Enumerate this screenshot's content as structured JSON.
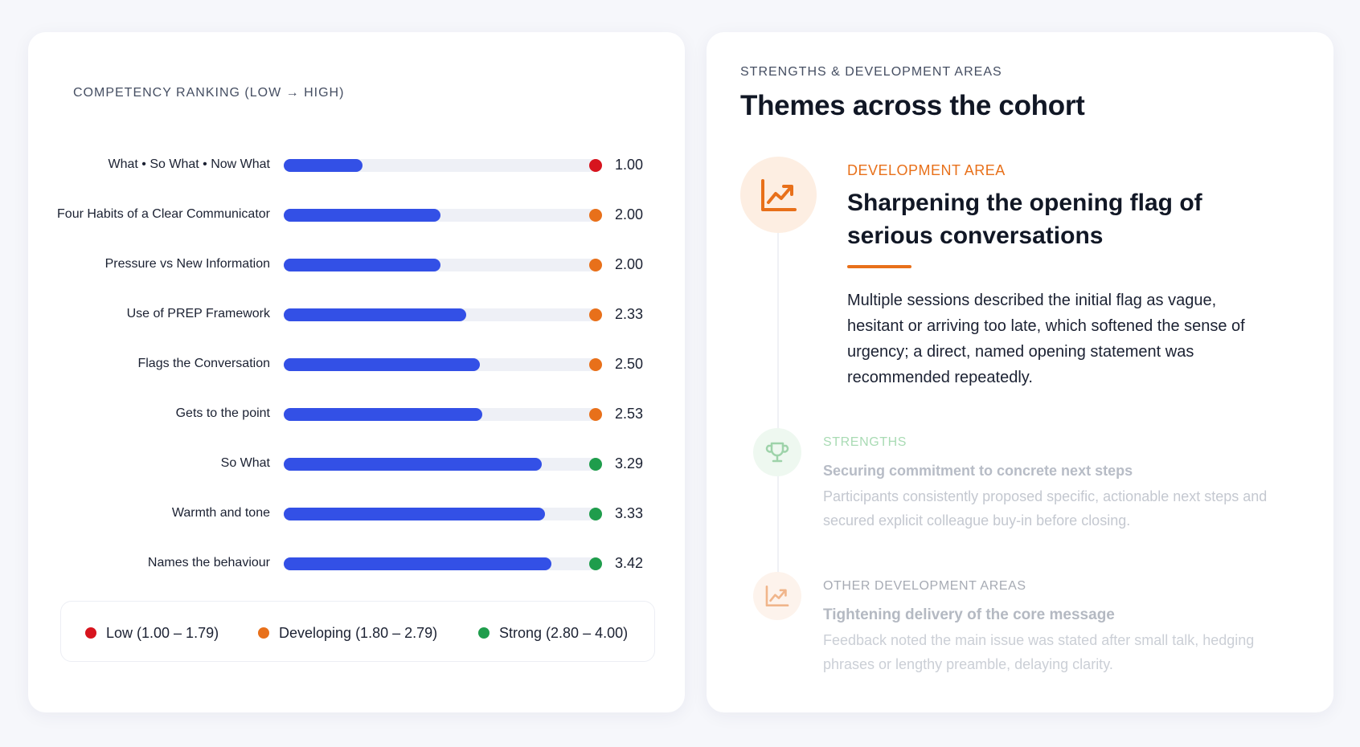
{
  "ranking": {
    "caption": "COMPETENCY RANKING (LOW → HIGH)",
    "max_score": 4.0,
    "items": [
      {
        "label": "What • So What • Now What",
        "value": "1.00",
        "score": 1.0,
        "level": "low"
      },
      {
        "label": "Four Habits of a Clear Communicator",
        "value": "2.00",
        "score": 2.0,
        "level": "developing"
      },
      {
        "label": "Pressure vs New Information",
        "value": "2.00",
        "score": 2.0,
        "level": "developing"
      },
      {
        "label": "Use of PREP Framework",
        "value": "2.33",
        "score": 2.33,
        "level": "developing"
      },
      {
        "label": "Flags the Conversation",
        "value": "2.50",
        "score": 2.5,
        "level": "developing"
      },
      {
        "label": "Gets to the point",
        "value": "2.53",
        "score": 2.53,
        "level": "developing"
      },
      {
        "label": "So What",
        "value": "3.29",
        "score": 3.29,
        "level": "strong"
      },
      {
        "label": "Warmth and tone",
        "value": "3.33",
        "score": 3.33,
        "level": "strong"
      },
      {
        "label": "Names the behaviour",
        "value": "3.42",
        "score": 3.42,
        "level": "strong"
      }
    ],
    "legend": [
      {
        "key": "low",
        "label": "Low (1.00 – 1.79)"
      },
      {
        "key": "developing",
        "label": "Developing (1.80 – 2.79)"
      },
      {
        "key": "strong",
        "label": "Strong (2.80 – 4.00)"
      }
    ]
  },
  "colors": {
    "bar": "#3350e6",
    "track": "#eef0f6",
    "low": "#d7141e",
    "developing": "#e8701a",
    "strong": "#1f9d4c",
    "accent_orange": "#e8701a"
  },
  "themes": {
    "caption": "STRENGTHS & DEVELOPMENT AREAS",
    "title": "Themes across the cohort",
    "development": {
      "icon": "trending-up-icon",
      "kicker": "DEVELOPMENT AREA",
      "title": "Sharpening the opening flag of serious conversations",
      "body": "Multiple sessions described the initial flag as vague, hesitant or arriving too late, which softened the sense of urgency; a direct, named opening statement was recommended repeatedly."
    },
    "strengths": {
      "icon": "trophy-icon",
      "kicker": "STRENGTHS",
      "title": "Securing commitment to concrete next steps",
      "body": "Participants consistently proposed specific, actionable next steps and secured explicit colleague buy-in before closing."
    },
    "other_development": {
      "icon": "trending-up-icon",
      "kicker": "OTHER DEVELOPMENT AREAS",
      "title": "Tightening delivery of the core message",
      "body": "Feedback noted the main issue was stated after small talk, hedging phrases or lengthy preamble, delaying clarity."
    }
  }
}
